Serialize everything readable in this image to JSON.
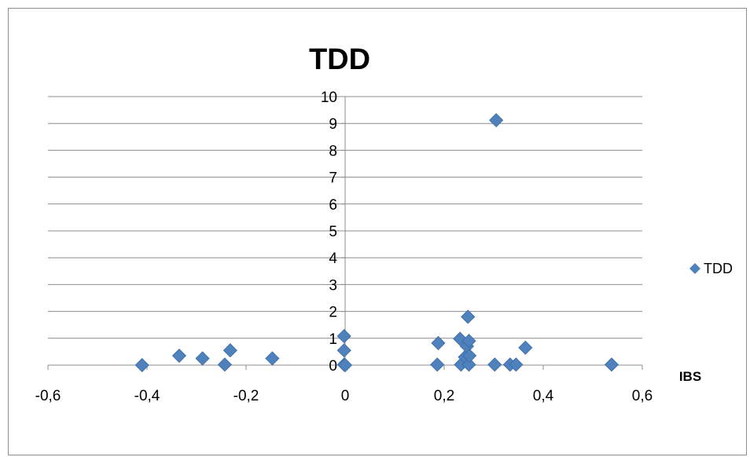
{
  "chart_data": {
    "type": "scatter",
    "title": "TDD",
    "xlabel": "IBS",
    "ylabel": "",
    "xlim": [
      -0.6,
      0.6
    ],
    "ylim": [
      0,
      10
    ],
    "x_ticks": [
      "-0,6",
      "-0,4",
      "-0,2",
      "0",
      "0,2",
      "0,4",
      "0,6"
    ],
    "y_ticks": [
      "0",
      "1",
      "2",
      "3",
      "4",
      "5",
      "6",
      "7",
      "8",
      "9",
      "10"
    ],
    "grid": true,
    "legend_position": "right",
    "marker": "diamond",
    "series": [
      {
        "name": "TDD",
        "color": "#4f81bd",
        "points": [
          {
            "x": -0.41,
            "y": 0.0
          },
          {
            "x": -0.335,
            "y": 0.35
          },
          {
            "x": -0.288,
            "y": 0.25
          },
          {
            "x": -0.243,
            "y": 0.02
          },
          {
            "x": -0.232,
            "y": 0.55
          },
          {
            "x": -0.147,
            "y": 0.25
          },
          {
            "x": -0.002,
            "y": 1.08
          },
          {
            "x": -0.002,
            "y": 0.55
          },
          {
            "x": -0.002,
            "y": 0.02
          },
          {
            "x": 0.0,
            "y": 0.0
          },
          {
            "x": 0.188,
            "y": 0.82
          },
          {
            "x": 0.186,
            "y": 0.02
          },
          {
            "x": 0.232,
            "y": 0.98
          },
          {
            "x": 0.234,
            "y": 0.02
          },
          {
            "x": 0.242,
            "y": 0.3
          },
          {
            "x": 0.246,
            "y": 0.7
          },
          {
            "x": 0.248,
            "y": 1.8
          },
          {
            "x": 0.25,
            "y": 0.9
          },
          {
            "x": 0.25,
            "y": 0.02
          },
          {
            "x": 0.251,
            "y": 0.35
          },
          {
            "x": 0.302,
            "y": 0.02
          },
          {
            "x": 0.305,
            "y": 9.12
          },
          {
            "x": 0.333,
            "y": 0.02
          },
          {
            "x": 0.345,
            "y": 0.02
          },
          {
            "x": 0.364,
            "y": 0.65
          },
          {
            "x": 0.538,
            "y": 0.02
          }
        ]
      }
    ]
  }
}
